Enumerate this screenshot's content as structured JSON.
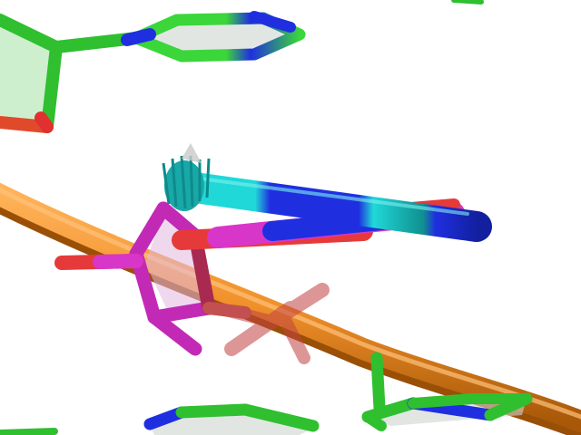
{
  "scene": {
    "kind": "molecular-structure-render",
    "style": "sticks-and-cartoon",
    "background": "#ffffff",
    "colors": {
      "backbone_orange": "#f0902a",
      "backbone_shadow": "#b85f10",
      "carbon_green": "#3ad63a",
      "nitrogen_blue": "#1f2fe0",
      "oxygen_red": "#e63a3a",
      "carbon_magenta": "#d836c8",
      "carbon_cyan": "#20d8d8",
      "ring_fill": "#cfd6d0"
    }
  }
}
